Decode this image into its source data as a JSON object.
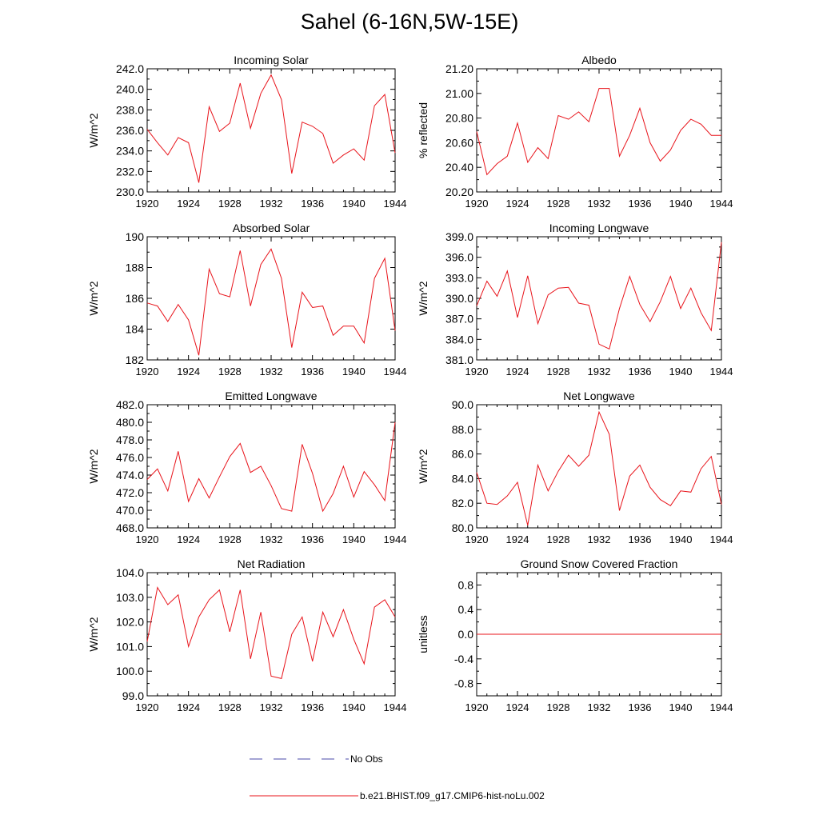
{
  "title": "Sahel (6-16N,5W-15E)",
  "colors": {
    "model": "#e8141b",
    "obs": "#4a4aa8",
    "axis": "#000000"
  },
  "legend": [
    {
      "label": "No Obs",
      "style": "dashed",
      "color": "#4a4aa8"
    },
    {
      "label": "b.e21.BHIST.f09_g17.CMIP6-hist-noLu.002",
      "style": "solid",
      "color": "#e8141b"
    }
  ],
  "chart_data": [
    {
      "type": "line",
      "title": "Incoming Solar",
      "ylabel": "W/m^2",
      "xlim": [
        1920,
        1944
      ],
      "ylim": [
        230,
        242
      ],
      "yticks": [
        230,
        232,
        234,
        236,
        238,
        240,
        242
      ],
      "ytick_labels": [
        "230.0",
        "232.0",
        "234.0",
        "236.0",
        "238.0",
        "240.0",
        "242.0"
      ],
      "xticks": [
        1920,
        1924,
        1928,
        1932,
        1936,
        1940,
        1944
      ],
      "xtick_labels": [
        "1920",
        "1924",
        "1928",
        "1932",
        "1936",
        "1940",
        "1944"
      ],
      "x": [
        1920,
        1921,
        1922,
        1923,
        1924,
        1925,
        1926,
        1927,
        1928,
        1929,
        1930,
        1931,
        1932,
        1933,
        1934,
        1935,
        1936,
        1937,
        1938,
        1939,
        1940,
        1941,
        1942,
        1943,
        1944
      ],
      "values": [
        236.1,
        234.8,
        233.6,
        235.3,
        234.8,
        230.9,
        238.3,
        235.9,
        236.7,
        240.6,
        236.2,
        239.6,
        241.4,
        239.0,
        231.8,
        236.8,
        236.4,
        235.7,
        232.8,
        233.6,
        234.2,
        233.1,
        238.4,
        239.5,
        233.8
      ]
    },
    {
      "type": "line",
      "title": "Albedo",
      "ylabel": "% reflected",
      "xlim": [
        1920,
        1944
      ],
      "ylim": [
        20.2,
        21.2
      ],
      "yticks": [
        20.2,
        20.4,
        20.6,
        20.8,
        21.0,
        21.2
      ],
      "ytick_labels": [
        "20.20",
        "20.40",
        "20.60",
        "20.80",
        "21.00",
        "21.20"
      ],
      "xticks": [
        1920,
        1924,
        1928,
        1932,
        1936,
        1940,
        1944
      ],
      "xtick_labels": [
        "1920",
        "1924",
        "1928",
        "1932",
        "1936",
        "1940",
        "1944"
      ],
      "x": [
        1920,
        1921,
        1922,
        1923,
        1924,
        1925,
        1926,
        1927,
        1928,
        1929,
        1930,
        1931,
        1932,
        1933,
        1934,
        1935,
        1936,
        1937,
        1938,
        1939,
        1940,
        1941,
        1942,
        1943,
        1944
      ],
      "values": [
        20.69,
        20.34,
        20.43,
        20.49,
        20.76,
        20.44,
        20.56,
        20.47,
        20.82,
        20.79,
        20.85,
        20.77,
        21.04,
        21.04,
        20.49,
        20.66,
        20.88,
        20.6,
        20.45,
        20.54,
        20.7,
        20.79,
        20.75,
        20.66,
        20.66
      ]
    },
    {
      "type": "line",
      "title": "Absorbed Solar",
      "ylabel": "W/m^2",
      "xlim": [
        1920,
        1944
      ],
      "ylim": [
        182,
        190
      ],
      "yticks": [
        182,
        184,
        186,
        188,
        190
      ],
      "ytick_labels": [
        "182",
        "184",
        "186",
        "188",
        "190"
      ],
      "xticks": [
        1920,
        1924,
        1928,
        1932,
        1936,
        1940,
        1944
      ],
      "xtick_labels": [
        "1920",
        "1924",
        "1928",
        "1932",
        "1936",
        "1940",
        "1944"
      ],
      "x": [
        1920,
        1921,
        1922,
        1923,
        1924,
        1925,
        1926,
        1927,
        1928,
        1929,
        1930,
        1931,
        1932,
        1933,
        1934,
        1935,
        1936,
        1937,
        1938,
        1939,
        1940,
        1941,
        1942,
        1943,
        1944
      ],
      "values": [
        185.7,
        185.5,
        184.5,
        185.6,
        184.6,
        182.3,
        187.9,
        186.3,
        186.1,
        189.1,
        185.5,
        188.2,
        189.2,
        187.3,
        182.8,
        186.4,
        185.4,
        185.5,
        183.6,
        184.2,
        184.2,
        183.1,
        187.3,
        188.6,
        183.9
      ]
    },
    {
      "type": "line",
      "title": "Incoming Longwave",
      "ylabel": "W/m^2",
      "xlim": [
        1920,
        1944
      ],
      "ylim": [
        381,
        399
      ],
      "yticks": [
        381,
        384,
        387,
        390,
        393,
        396,
        399
      ],
      "ytick_labels": [
        "381.0",
        "384.0",
        "387.0",
        "390.0",
        "393.0",
        "396.0",
        "399.0"
      ],
      "xticks": [
        1920,
        1924,
        1928,
        1932,
        1936,
        1940,
        1944
      ],
      "xtick_labels": [
        "1920",
        "1924",
        "1928",
        "1932",
        "1936",
        "1940",
        "1944"
      ],
      "x": [
        1920,
        1921,
        1922,
        1923,
        1924,
        1925,
        1926,
        1927,
        1928,
        1929,
        1930,
        1931,
        1932,
        1933,
        1934,
        1935,
        1936,
        1937,
        1938,
        1939,
        1940,
        1941,
        1942,
        1943,
        1944
      ],
      "values": [
        388.9,
        392.5,
        390.3,
        394.0,
        387.2,
        393.3,
        386.3,
        390.5,
        391.5,
        391.6,
        389.3,
        389.0,
        383.3,
        382.6,
        388.5,
        393.2,
        389.1,
        386.6,
        389.5,
        393.2,
        388.5,
        391.5,
        387.9,
        385.3,
        398.2
      ]
    },
    {
      "type": "line",
      "title": "Emitted Longwave",
      "ylabel": "W/m^2",
      "xlim": [
        1920,
        1944
      ],
      "ylim": [
        468,
        482
      ],
      "yticks": [
        468,
        470,
        472,
        474,
        476,
        478,
        480,
        482
      ],
      "ytick_labels": [
        "468.0",
        "470.0",
        "472.0",
        "474.0",
        "476.0",
        "478.0",
        "480.0",
        "482.0"
      ],
      "xticks": [
        1920,
        1924,
        1928,
        1932,
        1936,
        1940,
        1944
      ],
      "xtick_labels": [
        "1920",
        "1924",
        "1928",
        "1932",
        "1936",
        "1940",
        "1944"
      ],
      "x": [
        1920,
        1921,
        1922,
        1923,
        1924,
        1925,
        1926,
        1927,
        1928,
        1929,
        1930,
        1931,
        1932,
        1933,
        1934,
        1935,
        1936,
        1937,
        1938,
        1939,
        1940,
        1941,
        1942,
        1943,
        1944
      ],
      "values": [
        473.5,
        474.7,
        472.2,
        476.7,
        471.0,
        473.6,
        471.4,
        473.8,
        476.1,
        477.6,
        474.3,
        475.0,
        472.8,
        470.2,
        469.9,
        477.5,
        474.2,
        469.9,
        471.9,
        475.0,
        471.5,
        474.4,
        472.9,
        471.1,
        480.0
      ]
    },
    {
      "type": "line",
      "title": "Net Longwave",
      "ylabel": "W/m^2",
      "xlim": [
        1920,
        1944
      ],
      "ylim": [
        80,
        90
      ],
      "yticks": [
        80,
        82,
        84,
        86,
        88,
        90
      ],
      "ytick_labels": [
        "80.0",
        "82.0",
        "84.0",
        "86.0",
        "88.0",
        "90.0"
      ],
      "xticks": [
        1920,
        1924,
        1928,
        1932,
        1936,
        1940,
        1944
      ],
      "xtick_labels": [
        "1920",
        "1924",
        "1928",
        "1932",
        "1936",
        "1940",
        "1944"
      ],
      "x": [
        1920,
        1921,
        1922,
        1923,
        1924,
        1925,
        1926,
        1927,
        1928,
        1929,
        1930,
        1931,
        1932,
        1933,
        1934,
        1935,
        1936,
        1937,
        1938,
        1939,
        1940,
        1941,
        1942,
        1943,
        1944
      ],
      "values": [
        84.5,
        82.0,
        81.9,
        82.6,
        83.7,
        80.2,
        85.1,
        83.0,
        84.6,
        85.9,
        85.0,
        85.9,
        89.4,
        87.6,
        81.4,
        84.2,
        85.1,
        83.3,
        82.3,
        81.8,
        83.0,
        82.9,
        84.8,
        85.8,
        81.9
      ]
    },
    {
      "type": "line",
      "title": "Net Radiation",
      "ylabel": "W/m^2",
      "xlim": [
        1920,
        1944
      ],
      "ylim": [
        99,
        104
      ],
      "yticks": [
        99,
        100,
        101,
        102,
        103,
        104
      ],
      "ytick_labels": [
        "99.0",
        "100.0",
        "101.0",
        "102.0",
        "103.0",
        "104.0"
      ],
      "xticks": [
        1920,
        1924,
        1928,
        1932,
        1936,
        1940,
        1944
      ],
      "xtick_labels": [
        "1920",
        "1924",
        "1928",
        "1932",
        "1936",
        "1940",
        "1944"
      ],
      "x": [
        1920,
        1921,
        1922,
        1923,
        1924,
        1925,
        1926,
        1927,
        1928,
        1929,
        1930,
        1931,
        1932,
        1933,
        1934,
        1935,
        1936,
        1937,
        1938,
        1939,
        1940,
        1941,
        1942,
        1943,
        1944
      ],
      "values": [
        101.2,
        103.4,
        102.7,
        103.1,
        101.0,
        102.2,
        102.9,
        103.3,
        101.6,
        103.3,
        100.5,
        102.4,
        99.8,
        99.7,
        101.5,
        102.2,
        100.4,
        102.4,
        101.4,
        102.5,
        101.3,
        100.3,
        102.6,
        102.9,
        102.2
      ]
    },
    {
      "type": "line",
      "title": "Ground Snow Covered Fraction",
      "ylabel": "unitless",
      "xlim": [
        1920,
        1944
      ],
      "ylim": [
        -1,
        1
      ],
      "yticks": [
        -0.8,
        -0.4,
        0.0,
        0.4,
        0.8
      ],
      "ytick_labels": [
        "-0.8",
        "-0.4",
        "0.0",
        "0.4",
        "0.8"
      ],
      "xticks": [
        1920,
        1924,
        1928,
        1932,
        1936,
        1940,
        1944
      ],
      "xtick_labels": [
        "1920",
        "1924",
        "1928",
        "1932",
        "1936",
        "1940",
        "1944"
      ],
      "x": [
        1920,
        1921,
        1922,
        1923,
        1924,
        1925,
        1926,
        1927,
        1928,
        1929,
        1930,
        1931,
        1932,
        1933,
        1934,
        1935,
        1936,
        1937,
        1938,
        1939,
        1940,
        1941,
        1942,
        1943,
        1944
      ],
      "values": [
        0,
        0,
        0,
        0,
        0,
        0,
        0,
        0,
        0,
        0,
        0,
        0,
        0,
        0,
        0,
        0,
        0,
        0,
        0,
        0,
        0,
        0,
        0,
        0,
        0
      ]
    }
  ]
}
